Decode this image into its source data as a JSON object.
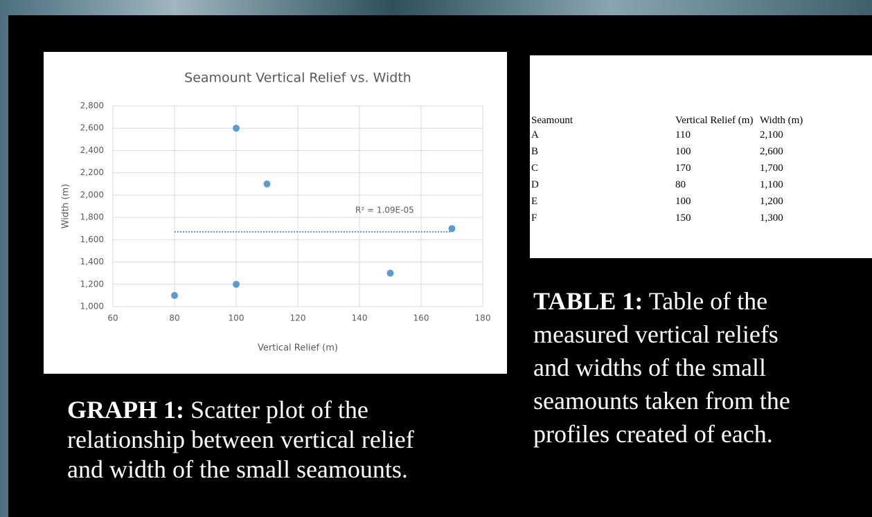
{
  "chart_data": {
    "type": "scatter",
    "title": "Seamount Vertical Relief vs. Width",
    "x_label": "Vertical Relief (m)",
    "y_label": "Width (m)",
    "x": [
      110,
      100,
      170,
      80,
      100,
      150
    ],
    "series": [
      {
        "name": "Width",
        "color": "#5b9bd5",
        "values": [
          2100,
          2600,
          1700,
          1100,
          1200,
          1300
        ]
      }
    ],
    "trendline": {
      "x": [
        80,
        170
      ],
      "values": [
        1670,
        1670
      ],
      "color": "#5b9bd5",
      "label": "R² = 1.09E-05"
    },
    "xlim": [
      60,
      180
    ],
    "xticks": [
      60,
      80,
      100,
      120,
      140,
      160,
      180
    ],
    "ylim": [
      1000,
      2800
    ],
    "yticks": [
      {
        "value": 1000,
        "label": "1,000"
      },
      {
        "value": 1200,
        "label": "1,200"
      },
      {
        "value": 1400,
        "label": "1,400"
      },
      {
        "value": 1600,
        "label": "1,600"
      },
      {
        "value": 1800,
        "label": "1,800"
      },
      {
        "value": 2000,
        "label": "2,000"
      },
      {
        "value": 2200,
        "label": "2,200"
      },
      {
        "value": 2400,
        "label": "2,400"
      },
      {
        "value": 2600,
        "label": "2,600"
      },
      {
        "value": 2800,
        "label": "2,800"
      }
    ],
    "grid": true
  },
  "table": {
    "header": [
      "Seamount",
      "Vertical Relief (m)",
      "Width (m)"
    ],
    "rows": [
      [
        "A",
        "110",
        "2,100"
      ],
      [
        "B",
        "100",
        "2,600"
      ],
      [
        "C",
        "170",
        "1,700"
      ],
      [
        "D",
        "80",
        "1,100"
      ],
      [
        "E",
        "100",
        "1,200"
      ],
      [
        "F",
        "150",
        "1,300"
      ]
    ]
  },
  "captions": {
    "graph": {
      "label": "GRAPH 1:",
      "lines": [
        "Scatter plot of the",
        "relationship between vertical relief",
        "and width of the small seamounts."
      ]
    },
    "table": {
      "label": "TABLE 1:",
      "lines": [
        "Table of the",
        "measured vertical reliefs",
        "and widths of the small",
        "seamounts taken from the",
        "profiles created of each."
      ]
    }
  }
}
